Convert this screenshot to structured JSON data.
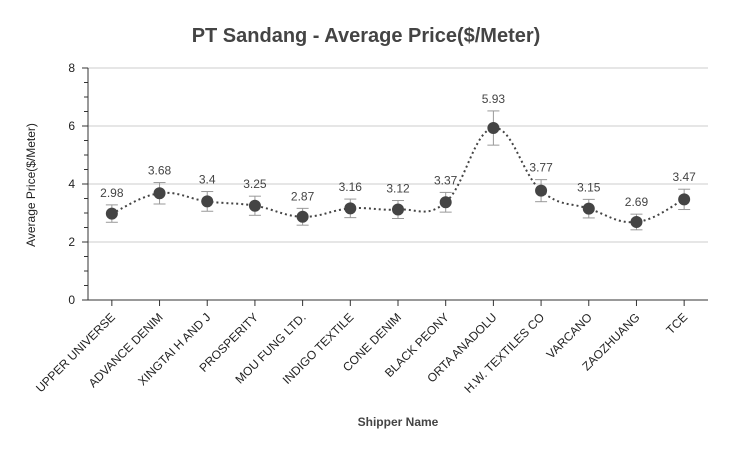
{
  "chart_data": {
    "type": "line",
    "title": "PT Sandang - Average Price($/Meter)",
    "xlabel": "Shipper Name",
    "ylabel": "Average Price($/Meter)",
    "ylim": [
      0,
      8
    ],
    "yticks": [
      0,
      2,
      4,
      6,
      8
    ],
    "grid": true,
    "legend": "none",
    "categories": [
      "UPPER UNIVERSE",
      "ADVANCE DENIM",
      "XINGTAI H AND J",
      "PROSPERITY",
      "MOU FUNG LTD.",
      "INDIGO TEXTILE",
      "CONE DENIM",
      "BLACK PEONY",
      "ORTA ANADOLU",
      "H.W. TEXTILES CO",
      "VARCANO",
      "ZAOZHUANG",
      "TCE"
    ],
    "series": [
      {
        "values": [
          2.98,
          3.68,
          3.4,
          3.25,
          2.87,
          3.16,
          3.12,
          3.37,
          5.93,
          3.77,
          3.15,
          2.69,
          3.47
        ],
        "error": [
          0.3,
          0.37,
          0.34,
          0.33,
          0.29,
          0.32,
          0.31,
          0.34,
          0.59,
          0.38,
          0.32,
          0.27,
          0.35
        ],
        "color": "#444444"
      }
    ]
  }
}
